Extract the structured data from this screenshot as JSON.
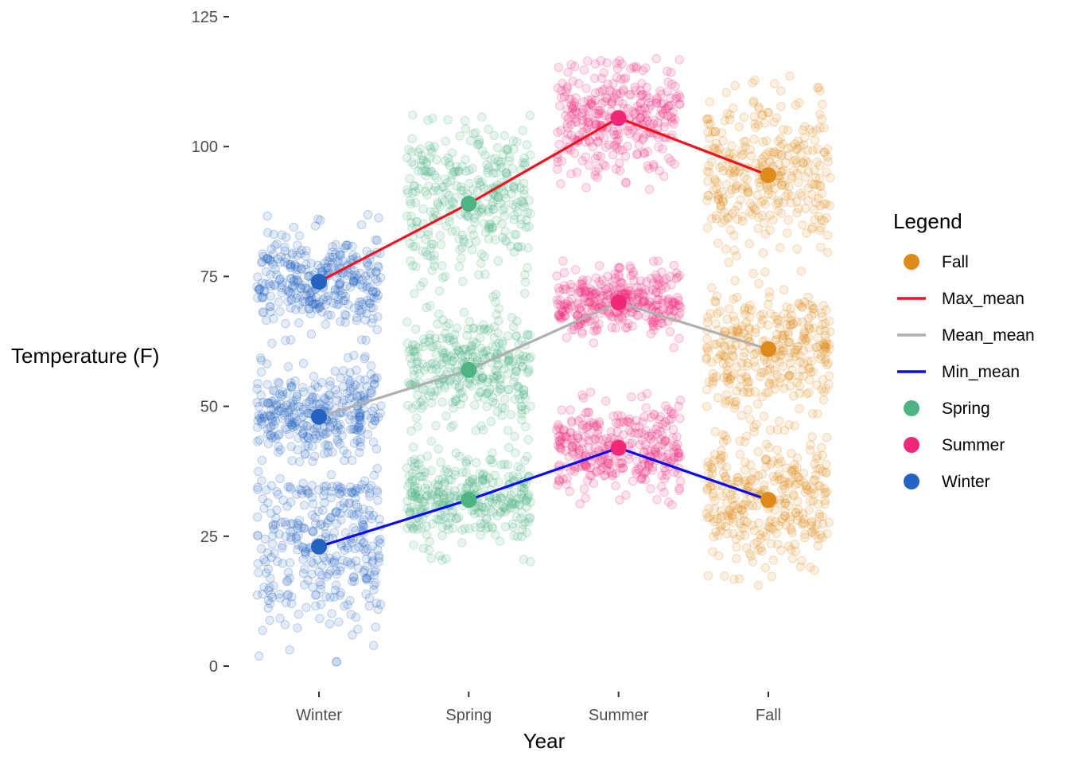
{
  "chart_data": {
    "type": "scatter",
    "xlabel": "Year",
    "ylabel": "Temperature (F)",
    "categories": [
      "Winter",
      "Spring",
      "Summer",
      "Fall"
    ],
    "y_ticks": [
      0,
      25,
      50,
      75,
      100,
      125
    ],
    "ylim": [
      -5,
      127
    ],
    "grid": false,
    "legend": {
      "title": "Legend",
      "placement": "right",
      "entries": [
        {
          "label": "Fall",
          "kind": "point",
          "color": "#E08A1A"
        },
        {
          "label": "Max_mean",
          "kind": "line",
          "color": "#F0121F"
        },
        {
          "label": "Mean_mean",
          "kind": "line",
          "color": "#B0B0B0"
        },
        {
          "label": "Min_mean",
          "kind": "line",
          "color": "#0A0AF5"
        },
        {
          "label": "Spring",
          "kind": "point",
          "color": "#4DB383"
        },
        {
          "label": "Summer",
          "kind": "point",
          "color": "#F0287A"
        },
        {
          "label": "Winter",
          "kind": "point",
          "color": "#2563C2"
        }
      ]
    },
    "season_colors": {
      "Winter": "#2563C2",
      "Spring": "#4DB383",
      "Summer": "#F0287A",
      "Fall": "#E08A1A"
    },
    "line_series": [
      {
        "name": "Max_mean",
        "color": "#F0121F",
        "values": [
          74,
          89,
          105.5,
          94.5
        ]
      },
      {
        "name": "Mean_mean",
        "color": "#B0B0B0",
        "values": [
          48,
          57,
          70,
          61
        ]
      },
      {
        "name": "Min_mean",
        "color": "#0A0AF5",
        "values": [
          23,
          32,
          42,
          32
        ]
      }
    ],
    "jitter_clouds": [
      {
        "season": "Winter",
        "stat": "Max",
        "center": 74,
        "min": 61,
        "max": 87
      },
      {
        "season": "Winter",
        "stat": "Mean",
        "center": 48,
        "min": 35,
        "max": 60
      },
      {
        "season": "Winter",
        "stat": "Min",
        "center": 23,
        "min": 0,
        "max": 35
      },
      {
        "season": "Spring",
        "stat": "Max",
        "center": 89,
        "min": 69,
        "max": 110
      },
      {
        "season": "Spring",
        "stat": "Mean",
        "center": 57,
        "min": 44,
        "max": 72
      },
      {
        "season": "Spring",
        "stat": "Min",
        "center": 32,
        "min": 20,
        "max": 45
      },
      {
        "season": "Summer",
        "stat": "Max",
        "center": 105.5,
        "min": 91,
        "max": 117
      },
      {
        "season": "Summer",
        "stat": "Mean",
        "center": 70,
        "min": 61,
        "max": 78
      },
      {
        "season": "Summer",
        "stat": "Min",
        "center": 42,
        "min": 31,
        "max": 53
      },
      {
        "season": "Fall",
        "stat": "Max",
        "center": 94.5,
        "min": 73,
        "max": 115
      },
      {
        "season": "Fall",
        "stat": "Mean",
        "center": 61,
        "min": 45,
        "max": 76
      },
      {
        "season": "Fall",
        "stat": "Min",
        "center": 32,
        "min": 14,
        "max": 47
      }
    ]
  }
}
